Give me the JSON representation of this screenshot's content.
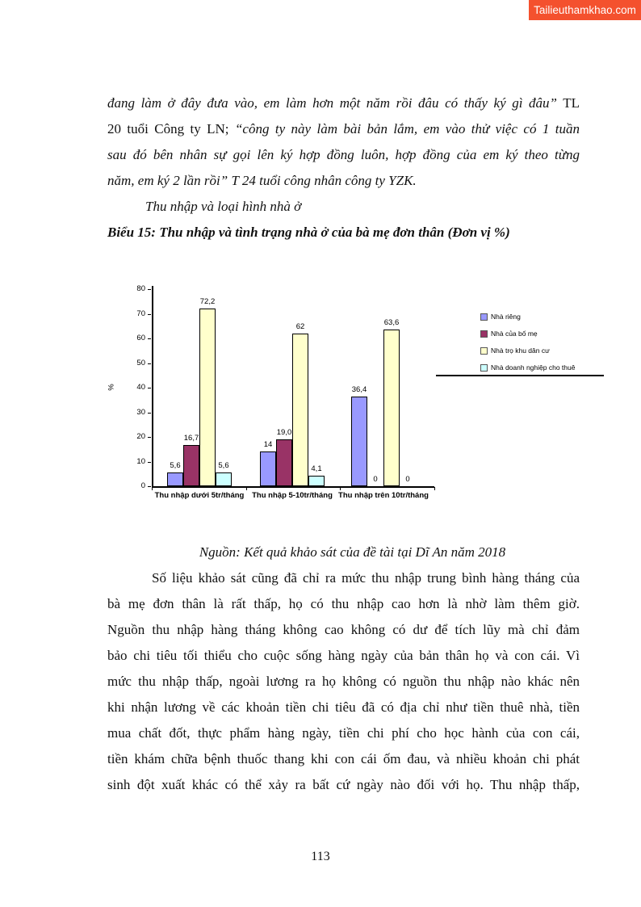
{
  "watermark": {
    "text": "Tailieuthamkhao.com",
    "bg_color": "#f4512e",
    "text_color": "#ffffff"
  },
  "intro_quote": {
    "line1_italic": "đang làm ở đây đưa vào, em làm hơn một năm rồi đâu có thấy ký gì đâu”",
    "line1_plain": " TL",
    "line2_plain": "20 tuổi Công ty LN; ",
    "line2_italic": "“công ty này làm bài bản lắm, em vào thử việc có 1 tuần",
    "line3_italic": "sau đó bên nhân sự gọi lên ký hợp đồng luôn, hợp đồng của em ký theo từng",
    "line4_italic": "năm, em ký 2 lần rồi” T 24 tuổi công nhân công ty YZK."
  },
  "subheading": "Thu nhập và loại hình nhà ở",
  "chart_title": "Biểu 15: Thu nhập và tình trạng nhà ở của bà mẹ đơn thân (Đơn vị %)",
  "chart_data": {
    "type": "bar",
    "title": "Thu nhập và tình trạng nhà ở của bà mẹ đơn thân",
    "unit": "%",
    "ylabel": "%",
    "xlabel": "",
    "ylim": [
      0,
      80
    ],
    "ytick_step": 10,
    "grid": false,
    "legend_position": "right",
    "categories": [
      "Thu nhập dưới 5tr/tháng",
      "Thu nhập 5-10tr/tháng",
      "Thu nhập trên 10tr/tháng"
    ],
    "series": [
      {
        "name": "Nhà riêng",
        "color": "#9999FF",
        "values": [
          5.6,
          14,
          36.4
        ],
        "labels": [
          "5,6",
          "14",
          "36,4"
        ]
      },
      {
        "name": "Nhà của bố mẹ",
        "color": "#993366",
        "values": [
          16.7,
          19.0,
          0
        ],
        "labels": [
          "16,7",
          "19,0",
          "0"
        ]
      },
      {
        "name": "Nhà trọ khu dân cư",
        "color": "#FFFFCC",
        "values": [
          72.2,
          62,
          63.6
        ],
        "labels": [
          "72,2",
          "62",
          "63,6"
        ]
      },
      {
        "name": "Nhà doanh nghiệp cho thuê",
        "color": "#CCFFFF",
        "values": [
          5.6,
          4.1,
          0
        ],
        "labels": [
          "5,6",
          "4,1",
          "0"
        ]
      }
    ]
  },
  "source_note": "Nguồn: Kết quả khảo sát của đề tài tại Dĩ An năm 2018",
  "body_paragraph": {
    "lines": [
      "Số liệu khảo sát cũng đã chỉ ra mức thu nhập trung bình hàng tháng của",
      "bà mẹ đơn thân là rất thấp, họ có thu nhập cao hơn là nhờ làm thêm giờ.",
      "Nguồn thu nhập hàng tháng không cao không có dư để tích lũy mà chỉ đảm",
      "bảo chi tiêu tối thiểu cho cuộc sống hàng ngày của bản thân họ và con cái. Vì",
      "mức thu nhập thấp, ngoài lương ra họ không có nguồn thu nhập nào khác nên",
      "khi nhận lương về các khoản tiền chi tiêu đã có địa chỉ như tiền thuê nhà, tiền",
      "mua chất đốt, thực phẩm hàng ngày, tiền chi phí cho học hành của con cái,",
      "tiền khám chữa bệnh thuốc thang khi con cái ốm đau, và nhiều khoản chi phát",
      "sinh đột xuất khác có thể xảy ra bất cứ ngày nào đối với họ. Thu nhập thấp,"
    ]
  },
  "footer": {
    "page_number": "113"
  }
}
